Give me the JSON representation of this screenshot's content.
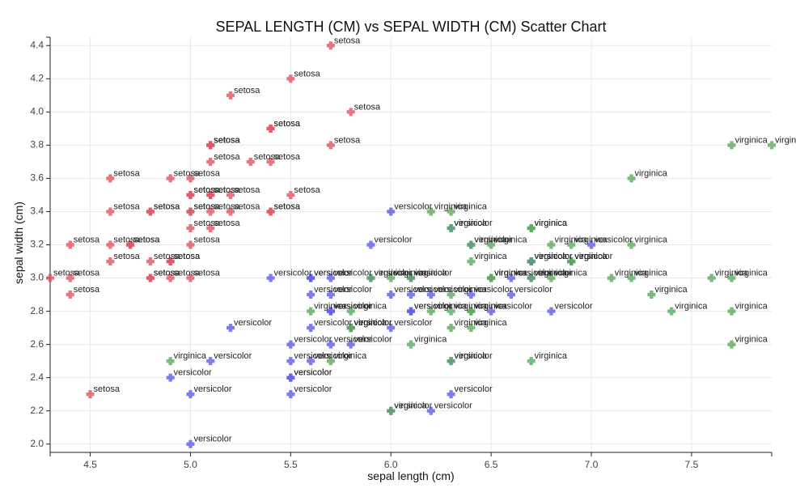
{
  "chart_data": {
    "type": "scatter",
    "title": "SEPAL LENGTH (CM) vs SEPAL WIDTH (CM) Scatter Chart",
    "xlabel": "sepal length (cm)",
    "ylabel": "sepal width (cm)",
    "xlim": [
      4.3,
      7.9
    ],
    "ylim": [
      1.95,
      4.45
    ],
    "x_ticks": [
      4.5,
      5.0,
      5.5,
      6.0,
      6.5,
      7.0,
      7.5
    ],
    "x_tick_labels": [
      "4.5",
      "5.0",
      "5.5",
      "6.0",
      "6.5",
      "7.0",
      "7.5"
    ],
    "y_ticks": [
      2.0,
      2.2,
      2.4,
      2.6,
      2.8,
      3.0,
      3.2,
      3.4,
      3.6,
      3.8,
      4.0,
      4.2,
      4.4
    ],
    "y_tick_labels": [
      "2.0",
      "2.2",
      "2.4",
      "2.6",
      "2.8",
      "3.0",
      "3.2",
      "3.4",
      "3.6",
      "3.8",
      "4.0",
      "4.2",
      "4.4"
    ],
    "grid": true,
    "legend": "none",
    "colors": {
      "setosa": "#e05561",
      "versicolor": "#5f5ce8",
      "virginica": "#5caa5c"
    },
    "marker": "cross",
    "series": [
      {
        "label_text": "setosa",
        "points": [
          [
            5.1,
            3.5
          ],
          [
            4.9,
            3.0
          ],
          [
            4.7,
            3.2
          ],
          [
            4.6,
            3.1
          ],
          [
            5.0,
            3.6
          ],
          [
            5.4,
            3.9
          ],
          [
            4.6,
            3.4
          ],
          [
            5.0,
            3.4
          ],
          [
            4.4,
            2.9
          ],
          [
            4.9,
            3.1
          ],
          [
            5.4,
            3.7
          ],
          [
            4.8,
            3.4
          ],
          [
            4.8,
            3.0
          ],
          [
            4.3,
            3.0
          ],
          [
            5.8,
            4.0
          ],
          [
            5.7,
            4.4
          ],
          [
            5.4,
            3.9
          ],
          [
            5.1,
            3.5
          ],
          [
            5.7,
            3.8
          ],
          [
            5.1,
            3.8
          ],
          [
            5.4,
            3.4
          ],
          [
            5.1,
            3.7
          ],
          [
            4.6,
            3.6
          ],
          [
            5.1,
            3.3
          ],
          [
            4.8,
            3.4
          ],
          [
            5.0,
            3.0
          ],
          [
            5.0,
            3.4
          ],
          [
            5.2,
            3.5
          ],
          [
            5.2,
            3.4
          ],
          [
            4.7,
            3.2
          ],
          [
            4.8,
            3.1
          ],
          [
            5.4,
            3.4
          ],
          [
            5.2,
            4.1
          ],
          [
            5.5,
            4.2
          ],
          [
            4.9,
            3.1
          ],
          [
            5.0,
            3.2
          ],
          [
            5.5,
            3.5
          ],
          [
            4.9,
            3.6
          ],
          [
            4.4,
            3.0
          ],
          [
            5.1,
            3.4
          ],
          [
            5.0,
            3.5
          ],
          [
            4.5,
            2.3
          ],
          [
            4.4,
            3.2
          ],
          [
            5.0,
            3.5
          ],
          [
            5.1,
            3.8
          ],
          [
            4.8,
            3.0
          ],
          [
            5.1,
            3.8
          ],
          [
            4.6,
            3.2
          ],
          [
            5.3,
            3.7
          ],
          [
            5.0,
            3.3
          ]
        ]
      },
      {
        "label_text": "versicolor",
        "points": [
          [
            7.0,
            3.2
          ],
          [
            6.4,
            3.2
          ],
          [
            6.9,
            3.1
          ],
          [
            5.5,
            2.3
          ],
          [
            6.5,
            2.8
          ],
          [
            5.7,
            2.8
          ],
          [
            6.3,
            3.3
          ],
          [
            4.9,
            2.4
          ],
          [
            6.6,
            2.9
          ],
          [
            5.2,
            2.7
          ],
          [
            5.0,
            2.0
          ],
          [
            5.9,
            3.0
          ],
          [
            6.0,
            2.2
          ],
          [
            6.1,
            2.9
          ],
          [
            5.6,
            2.9
          ],
          [
            6.7,
            3.1
          ],
          [
            5.6,
            3.0
          ],
          [
            5.8,
            2.7
          ],
          [
            6.2,
            2.2
          ],
          [
            5.6,
            2.5
          ],
          [
            5.9,
            3.2
          ],
          [
            6.1,
            2.8
          ],
          [
            6.3,
            2.5
          ],
          [
            6.1,
            2.8
          ],
          [
            6.4,
            2.9
          ],
          [
            6.6,
            3.0
          ],
          [
            6.8,
            2.8
          ],
          [
            6.7,
            3.0
          ],
          [
            6.0,
            2.9
          ],
          [
            5.7,
            2.6
          ],
          [
            5.5,
            2.4
          ],
          [
            5.5,
            2.4
          ],
          [
            5.8,
            2.7
          ],
          [
            6.0,
            2.7
          ],
          [
            5.4,
            3.0
          ],
          [
            6.0,
            3.4
          ],
          [
            6.7,
            3.1
          ],
          [
            6.3,
            2.3
          ],
          [
            5.6,
            3.0
          ],
          [
            5.5,
            2.5
          ],
          [
            5.5,
            2.6
          ],
          [
            6.1,
            3.0
          ],
          [
            5.8,
            2.6
          ],
          [
            5.0,
            2.3
          ],
          [
            5.6,
            2.7
          ],
          [
            5.7,
            3.0
          ],
          [
            5.7,
            2.9
          ],
          [
            6.2,
            2.9
          ],
          [
            5.1,
            2.5
          ],
          [
            5.7,
            2.8
          ]
        ]
      },
      {
        "label_text": "virginica",
        "points": [
          [
            6.3,
            3.3
          ],
          [
            5.8,
            2.7
          ],
          [
            7.1,
            3.0
          ],
          [
            6.3,
            2.9
          ],
          [
            6.5,
            3.0
          ],
          [
            7.6,
            3.0
          ],
          [
            4.9,
            2.5
          ],
          [
            7.3,
            2.9
          ],
          [
            6.7,
            2.5
          ],
          [
            7.2,
            3.6
          ],
          [
            6.5,
            3.2
          ],
          [
            6.4,
            2.7
          ],
          [
            6.8,
            3.0
          ],
          [
            5.7,
            2.5
          ],
          [
            5.8,
            2.8
          ],
          [
            6.4,
            3.2
          ],
          [
            6.5,
            3.0
          ],
          [
            7.7,
            3.8
          ],
          [
            7.7,
            2.6
          ],
          [
            6.0,
            2.2
          ],
          [
            6.9,
            3.2
          ],
          [
            5.6,
            2.8
          ],
          [
            7.7,
            2.8
          ],
          [
            6.3,
            2.7
          ],
          [
            6.7,
            3.3
          ],
          [
            7.2,
            3.2
          ],
          [
            6.2,
            2.8
          ],
          [
            6.1,
            3.0
          ],
          [
            6.4,
            2.8
          ],
          [
            7.2,
            3.0
          ],
          [
            7.4,
            2.8
          ],
          [
            7.9,
            3.8
          ],
          [
            6.4,
            2.8
          ],
          [
            6.3,
            2.8
          ],
          [
            6.1,
            2.6
          ],
          [
            7.7,
            3.0
          ],
          [
            6.3,
            3.4
          ],
          [
            6.4,
            3.1
          ],
          [
            6.0,
            3.0
          ],
          [
            6.9,
            3.1
          ],
          [
            6.7,
            3.1
          ],
          [
            6.9,
            3.1
          ],
          [
            5.8,
            2.7
          ],
          [
            6.8,
            3.2
          ],
          [
            6.7,
            3.3
          ],
          [
            6.7,
            3.0
          ],
          [
            6.3,
            2.5
          ],
          [
            6.5,
            3.0
          ],
          [
            6.2,
            3.4
          ],
          [
            5.9,
            3.0
          ]
        ]
      }
    ]
  }
}
